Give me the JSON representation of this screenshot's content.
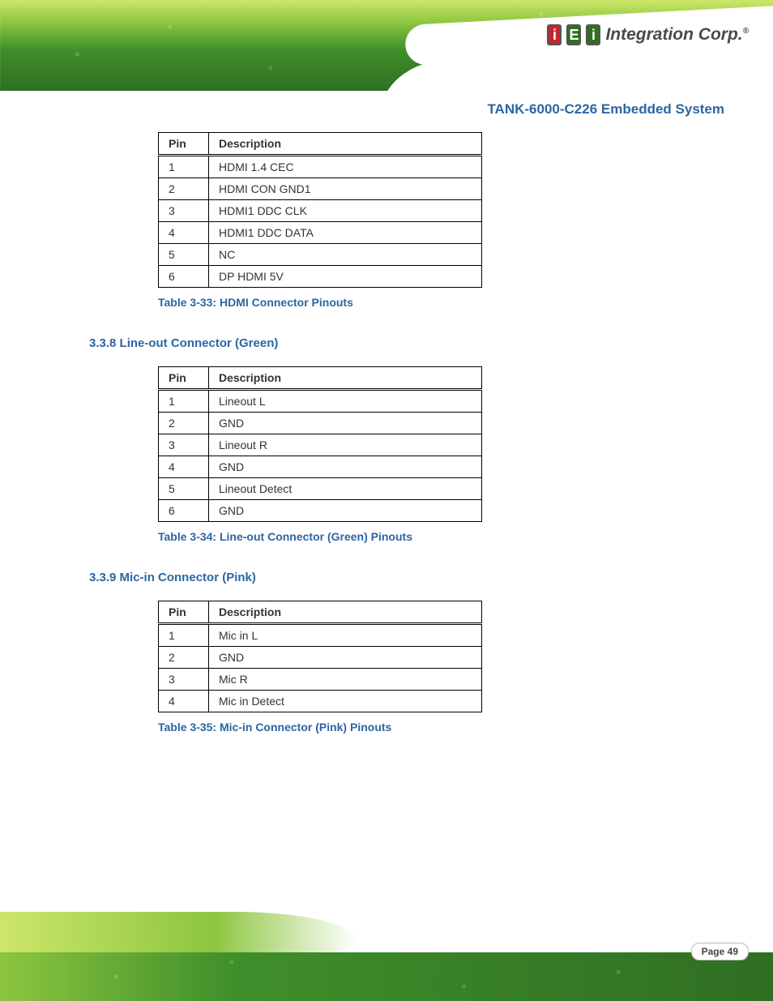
{
  "brand": {
    "logo_text": "Integration Corp.",
    "logo_i": "i",
    "logo_E": "E"
  },
  "doc_title": "TANK-6000-C226 Embedded System",
  "header_pin": "Pin",
  "header_desc": "Description",
  "tables": {
    "t33": {
      "rows": [
        [
          "1",
          "HDMI 1.4 CEC"
        ],
        [
          "2",
          "HDMI CON GND1"
        ],
        [
          "3",
          "HDMI1 DDC CLK"
        ],
        [
          "4",
          "HDMI1 DDC DATA"
        ],
        [
          "5",
          "NC"
        ],
        [
          "6",
          "DP HDMI 5V"
        ]
      ],
      "caption": "Table 3-33: HDMI Connector Pinouts"
    },
    "t34": {
      "heading": "3.3.8 Line-out Connector (Green)",
      "rows": [
        [
          "1",
          "Lineout L"
        ],
        [
          "2",
          "GND"
        ],
        [
          "3",
          "Lineout R"
        ],
        [
          "4",
          "GND"
        ],
        [
          "5",
          "Lineout Detect"
        ],
        [
          "6",
          "GND"
        ]
      ],
      "caption": "Table 3-34: Line-out Connector (Green) Pinouts"
    },
    "t35": {
      "heading": "3.3.9 Mic-in Connector (Pink)",
      "rows": [
        [
          "1",
          "Mic in L"
        ],
        [
          "2",
          "GND"
        ],
        [
          "3",
          "Mic R"
        ],
        [
          "4",
          "Mic in Detect"
        ]
      ],
      "caption": "Table 3-35: Mic-in Connector (Pink) Pinouts"
    }
  },
  "page_label": "Page 49"
}
